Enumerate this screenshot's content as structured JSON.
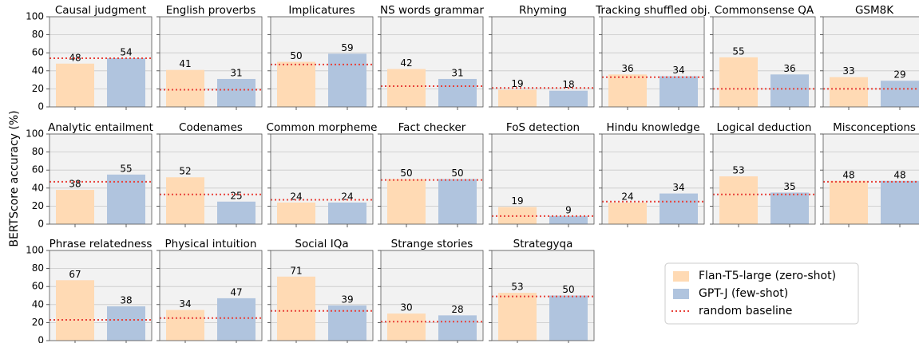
{
  "y_label": "BERTScore accuracy (%)",
  "series": [
    {
      "name": "Flan-T5-large (zero-shot)",
      "color": "#ffdab4"
    },
    {
      "name": "GPT-J (few-shot)",
      "color": "#b0c4de"
    }
  ],
  "baseline": {
    "name": "random baseline",
    "color": "#e8423a"
  },
  "legend": "lower right",
  "chart_data": [
    {
      "type": "bar",
      "title": "Causal judgment",
      "values": [
        48,
        54
      ],
      "baseline": 54,
      "ylim": [
        0,
        100
      ],
      "yticks": [
        0,
        20,
        40,
        60,
        80,
        100
      ],
      "grid": true
    },
    {
      "type": "bar",
      "title": "English proverbs",
      "values": [
        41,
        31
      ],
      "baseline": 19,
      "ylim": [
        0,
        100
      ],
      "yticks": [
        0,
        20,
        40,
        60,
        80,
        100
      ],
      "grid": true
    },
    {
      "type": "bar",
      "title": "Implicatures",
      "values": [
        50,
        59
      ],
      "baseline": 47,
      "ylim": [
        0,
        100
      ],
      "yticks": [
        0,
        20,
        40,
        60,
        80,
        100
      ],
      "grid": true
    },
    {
      "type": "bar",
      "title": "NS words grammar",
      "values": [
        42,
        31
      ],
      "baseline": 23,
      "ylim": [
        0,
        100
      ],
      "yticks": [
        0,
        20,
        40,
        60,
        80,
        100
      ],
      "grid": true
    },
    {
      "type": "bar",
      "title": "Rhyming",
      "values": [
        19,
        18
      ],
      "baseline": 21,
      "ylim": [
        0,
        100
      ],
      "yticks": [
        0,
        20,
        40,
        60,
        80,
        100
      ],
      "grid": true
    },
    {
      "type": "bar",
      "title": "Tracking shuffled obj.",
      "values": [
        36,
        34
      ],
      "baseline": 33,
      "ylim": [
        0,
        100
      ],
      "yticks": [
        0,
        20,
        40,
        60,
        80,
        100
      ],
      "grid": true
    },
    {
      "type": "bar",
      "title": "Commonsense QA",
      "values": [
        55,
        36
      ],
      "baseline": 20,
      "ylim": [
        0,
        100
      ],
      "yticks": [
        0,
        20,
        40,
        60,
        80,
        100
      ],
      "grid": true
    },
    {
      "type": "bar",
      "title": "GSM8K",
      "values": [
        33,
        29
      ],
      "baseline": 20,
      "ylim": [
        0,
        100
      ],
      "yticks": [
        0,
        20,
        40,
        60,
        80,
        100
      ],
      "grid": true
    },
    {
      "type": "bar",
      "title": "Analytic entailment",
      "values": [
        38,
        55
      ],
      "baseline": 47,
      "ylim": [
        0,
        100
      ],
      "yticks": [
        0,
        20,
        40,
        60,
        80,
        100
      ],
      "grid": true
    },
    {
      "type": "bar",
      "title": "Codenames",
      "values": [
        52,
        25
      ],
      "baseline": 33,
      "ylim": [
        0,
        100
      ],
      "yticks": [
        0,
        20,
        40,
        60,
        80,
        100
      ],
      "grid": true
    },
    {
      "type": "bar",
      "title": "Common morpheme",
      "values": [
        24,
        24
      ],
      "baseline": 27,
      "ylim": [
        0,
        100
      ],
      "yticks": [
        0,
        20,
        40,
        60,
        80,
        100
      ],
      "grid": true
    },
    {
      "type": "bar",
      "title": "Fact checker",
      "values": [
        50,
        50
      ],
      "baseline": 49,
      "ylim": [
        0,
        100
      ],
      "yticks": [
        0,
        20,
        40,
        60,
        80,
        100
      ],
      "grid": true
    },
    {
      "type": "bar",
      "title": "FoS detection",
      "values": [
        19,
        9
      ],
      "baseline": 9,
      "ylim": [
        0,
        100
      ],
      "yticks": [
        0,
        20,
        40,
        60,
        80,
        100
      ],
      "grid": true
    },
    {
      "type": "bar",
      "title": "Hindu knowledge",
      "values": [
        24,
        34
      ],
      "baseline": 25,
      "ylim": [
        0,
        100
      ],
      "yticks": [
        0,
        20,
        40,
        60,
        80,
        100
      ],
      "grid": true
    },
    {
      "type": "bar",
      "title": "Logical deduction",
      "values": [
        53,
        35
      ],
      "baseline": 33,
      "ylim": [
        0,
        100
      ],
      "yticks": [
        0,
        20,
        40,
        60,
        80,
        100
      ],
      "grid": true
    },
    {
      "type": "bar",
      "title": "Misconceptions",
      "values": [
        48,
        48
      ],
      "baseline": 47,
      "ylim": [
        0,
        100
      ],
      "yticks": [
        0,
        20,
        40,
        60,
        80,
        100
      ],
      "grid": true
    },
    {
      "type": "bar",
      "title": "Phrase relatedness",
      "values": [
        67,
        38
      ],
      "baseline": 23,
      "ylim": [
        0,
        100
      ],
      "yticks": [
        0,
        20,
        40,
        60,
        80,
        100
      ],
      "grid": true
    },
    {
      "type": "bar",
      "title": "Physical intuition",
      "values": [
        34,
        47
      ],
      "baseline": 25,
      "ylim": [
        0,
        100
      ],
      "yticks": [
        0,
        20,
        40,
        60,
        80,
        100
      ],
      "grid": true
    },
    {
      "type": "bar",
      "title": "Social IQa",
      "values": [
        71,
        39
      ],
      "baseline": 33,
      "ylim": [
        0,
        100
      ],
      "yticks": [
        0,
        20,
        40,
        60,
        80,
        100
      ],
      "grid": true
    },
    {
      "type": "bar",
      "title": "Strange stories",
      "values": [
        30,
        28
      ],
      "baseline": 21,
      "ylim": [
        0,
        100
      ],
      "yticks": [
        0,
        20,
        40,
        60,
        80,
        100
      ],
      "grid": true
    },
    {
      "type": "bar",
      "title": "Strategyqa",
      "values": [
        53,
        50
      ],
      "baseline": 49,
      "ylim": [
        0,
        100
      ],
      "yticks": [
        0,
        20,
        40,
        60,
        80,
        100
      ],
      "grid": true
    }
  ]
}
